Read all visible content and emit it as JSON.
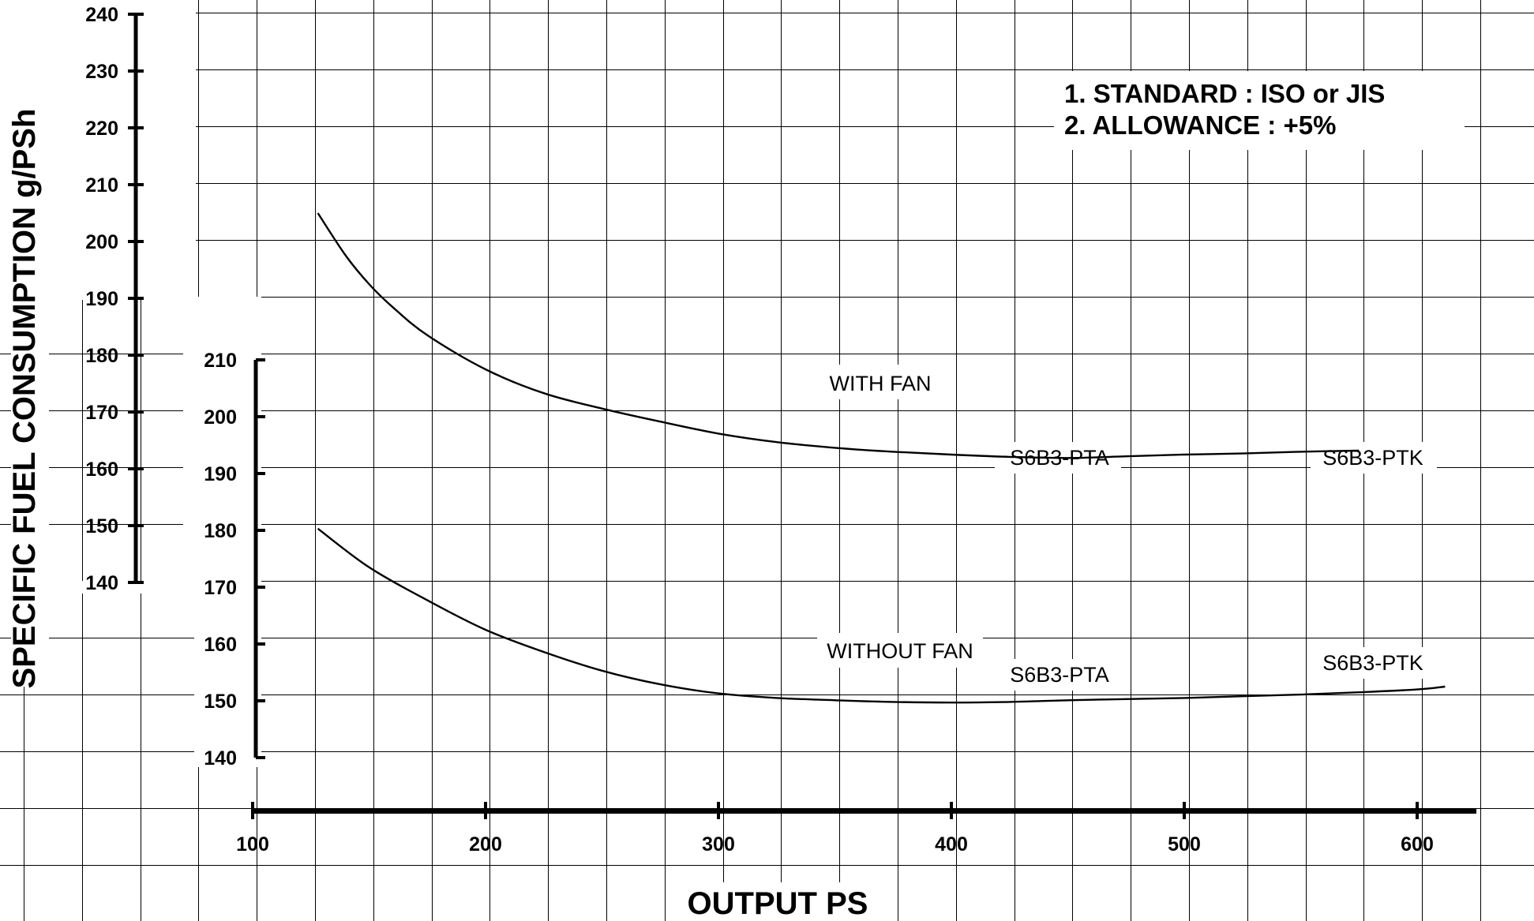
{
  "chart_data": {
    "type": "line",
    "title": "",
    "xlabel": "OUTPUT PS",
    "ylabel": "SPECIFIC FUEL CONSUMPTION g/PSh",
    "grid": true,
    "x_axis": {
      "range": [
        100,
        600
      ],
      "ticks": [
        100,
        200,
        300,
        400,
        500,
        600
      ]
    },
    "y_axis_upper": {
      "range": [
        140,
        240
      ],
      "ticks": [
        140,
        150,
        160,
        170,
        180,
        190,
        200,
        210,
        220,
        230,
        240
      ],
      "applies_to": "WITH FAN"
    },
    "y_axis_lower": {
      "range": [
        140,
        210
      ],
      "ticks": [
        140,
        150,
        160,
        170,
        180,
        190,
        200,
        210
      ],
      "applies_to": "WITHOUT FAN"
    },
    "series": [
      {
        "name": "WITH FAN",
        "axis": "upper",
        "x": [
          128,
          140,
          150,
          160,
          175,
          200,
          225,
          250,
          275,
          300,
          325,
          350,
          375,
          400,
          425,
          450,
          475,
          500,
          525,
          550,
          575
        ],
        "y": [
          205,
          197.5,
          192.5,
          188.5,
          183.5,
          177.5,
          173.3,
          170.6,
          168.3,
          166.2,
          164.7,
          163.7,
          163,
          162.5,
          162.1,
          161.9,
          162.2,
          162.5,
          162.7,
          163,
          163.2
        ]
      },
      {
        "name": "WITHOUT FAN",
        "axis": "lower",
        "x": [
          128,
          150,
          175,
          200,
          225,
          250,
          275,
          300,
          325,
          350,
          375,
          400,
          425,
          450,
          475,
          500,
          525,
          550,
          575,
          600,
          612
        ],
        "y": [
          180.3,
          173.5,
          167.7,
          162.5,
          158.6,
          155.3,
          152.9,
          151.3,
          150.5,
          150.1,
          149.8,
          149.7,
          149.8,
          150.1,
          150.3,
          150.5,
          150.8,
          151.1,
          151.5,
          152,
          152.5
        ]
      }
    ],
    "annotations": {
      "with_fan": "WITH FAN",
      "without_fan": "WITHOUT FAN",
      "pta_upper": "S6B3-PTA",
      "ptk_upper": "S6B3-PTK",
      "pta_lower": "S6B3-PTA",
      "ptk_lower": "S6B3-PTK"
    },
    "notes": [
      "1. STANDARD   : ISO or JIS",
      "2. ALLOWANCE : +5%"
    ]
  }
}
